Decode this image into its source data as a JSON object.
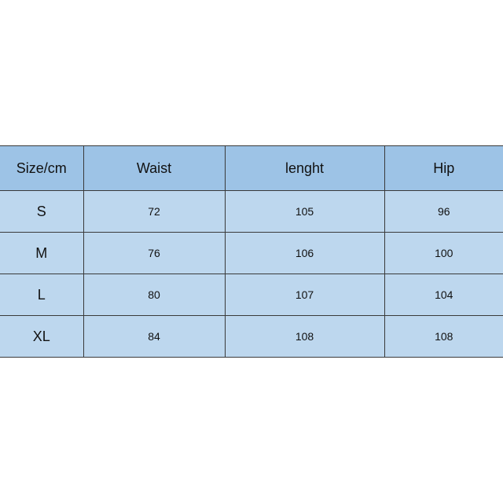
{
  "table": {
    "header": [
      "Size/cm",
      "Waist",
      "lenght",
      "Hip"
    ],
    "rows": [
      [
        "S",
        72,
        105,
        96
      ],
      [
        "M",
        76,
        106,
        100
      ],
      [
        "L",
        80,
        107,
        104
      ],
      [
        "XL",
        84,
        108,
        108
      ]
    ]
  }
}
